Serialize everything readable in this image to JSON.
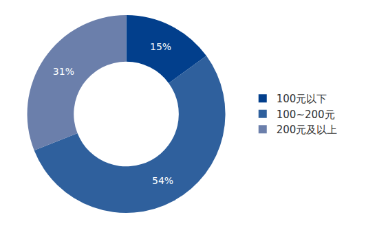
{
  "chart_data": {
    "type": "pie",
    "categories": [
      "100元以下",
      "100~200元",
      "200元及以上"
    ],
    "values": [
      15,
      54,
      31
    ],
    "value_labels": [
      "15%",
      "54%",
      "31%"
    ],
    "colors": [
      "#023f8c",
      "#2f609d",
      "#6b7fab"
    ],
    "data_labels": true,
    "legend": "right"
  }
}
